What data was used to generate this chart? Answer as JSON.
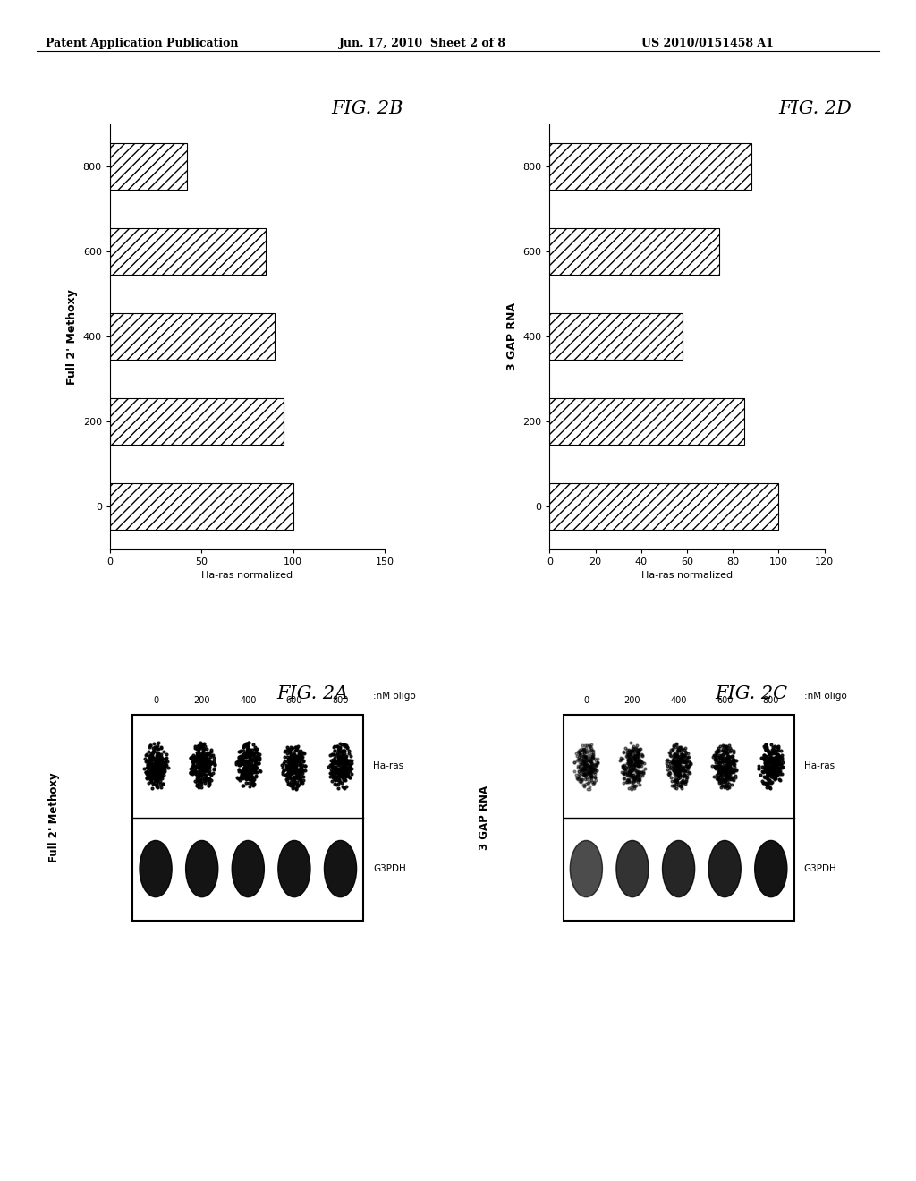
{
  "header_left": "Patent Application Publication",
  "header_center": "Jun. 17, 2010  Sheet 2 of 8",
  "header_right": "US 2010/0151458 A1",
  "fig2b_categories": [
    "0",
    "200",
    "400",
    "600",
    "800"
  ],
  "fig2b_values": [
    100,
    95,
    90,
    85,
    42
  ],
  "fig2b_conc_label": "Full 2' Methoxy",
  "fig2b_haras_label": "Ha-ras normalized",
  "fig2b_xlim": 150,
  "fig2b_xticks": [
    0,
    50,
    100,
    150
  ],
  "fig2b_xticklabels": [
    "0",
    "50",
    "100",
    "150"
  ],
  "fig2b_title": "FIG. 2B",
  "fig2d_categories": [
    "0",
    "200",
    "400",
    "600",
    "800"
  ],
  "fig2d_values": [
    100,
    85,
    58,
    74,
    88
  ],
  "fig2d_conc_label": "3 GAP RNA",
  "fig2d_haras_label": "Ha-ras normalized",
  "fig2d_xlim": 120,
  "fig2d_xticks": [
    0,
    20,
    40,
    60,
    80,
    100,
    120
  ],
  "fig2d_xticklabels": [
    "0",
    "20",
    "40",
    "60",
    "80",
    "100",
    "120"
  ],
  "fig2d_title": "FIG. 2D",
  "fig2a_title": "FIG. 2A",
  "fig2a_conc_label": "Full 2' Methoxy",
  "fig2a_categories": [
    "0",
    "200",
    "400",
    "600",
    "800"
  ],
  "fig2c_title": "FIG. 2C",
  "fig2c_conc_label": "3 GAP RNA",
  "fig2c_categories": [
    "0",
    "200",
    "400",
    "600",
    "800"
  ],
  "hatch_pattern": "///",
  "bar_facecolor": "white",
  "bar_edgecolor": "black",
  "background_color": "white",
  "text_color": "black"
}
